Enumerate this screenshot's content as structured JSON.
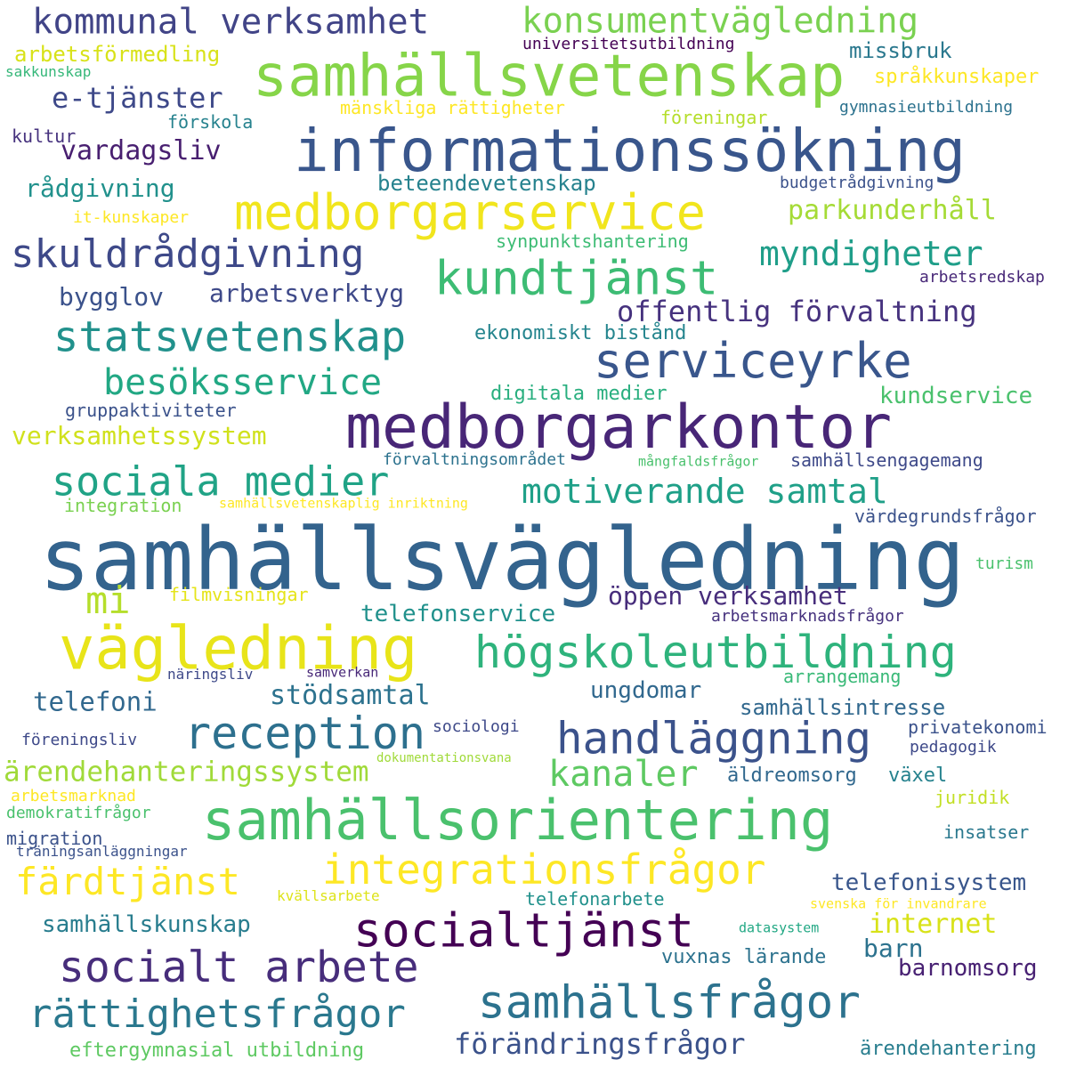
{
  "words": [
    {
      "text": "samhällsvägledning",
      "color": "#33638d"
    },
    {
      "text": "medborgarkontor",
      "color": "#482677"
    },
    {
      "text": "informationssökning",
      "color": "#39568c"
    },
    {
      "text": "samhällsvetenskap",
      "color": "#86d549"
    },
    {
      "text": "samhällsorientering",
      "color": "#4ac16d"
    },
    {
      "text": "vägledning",
      "color": "#e8e419"
    },
    {
      "text": "medborgarservice",
      "color": "#f1e51d"
    },
    {
      "text": "högskoleutbildning",
      "color": "#2eb37c"
    },
    {
      "text": "serviceyrke",
      "color": "#39568c"
    },
    {
      "text": "socialtjänst",
      "color": "#440154"
    },
    {
      "text": "samhällsfrågor",
      "color": "#2c728e"
    },
    {
      "text": "kundtjänst",
      "color": "#3dbc74"
    },
    {
      "text": "handläggning",
      "color": "#3b528b"
    },
    {
      "text": "reception",
      "color": "#2d708e"
    },
    {
      "text": "statsvetenskap",
      "color": "#21918c"
    },
    {
      "text": "socialt arbete",
      "color": "#472d7b"
    },
    {
      "text": "integrationsfrågor",
      "color": "#fde725"
    },
    {
      "text": "rättighetsfrågor",
      "color": "#2a788e"
    },
    {
      "text": "sociala medier",
      "color": "#20a386"
    },
    {
      "text": "skuldrådgivning",
      "color": "#3e4989"
    },
    {
      "text": "kommunal verksamhet",
      "color": "#414487"
    },
    {
      "text": "konsumentvägledning",
      "color": "#7ad151"
    },
    {
      "text": "besöksservice",
      "color": "#22a884"
    },
    {
      "text": "motiverande samtal",
      "color": "#1fa088"
    },
    {
      "text": "färdtjänst",
      "color": "#fde725"
    },
    {
      "text": "myndigheter",
      "color": "#1f9e89"
    },
    {
      "text": "offentlig förvaltning",
      "color": "#46327e"
    },
    {
      "text": "kanaler",
      "color": "#5ec962"
    },
    {
      "text": "förändringsfrågor",
      "color": "#3b528b"
    },
    {
      "text": "mi",
      "color": "#b5de2b"
    },
    {
      "text": "ärendehanteringssystem",
      "color": "#a0da39"
    },
    {
      "text": "parkunderhåll",
      "color": "#a5db36"
    },
    {
      "text": "internet",
      "color": "#d8e219"
    },
    {
      "text": "e-tjänster",
      "color": "#3e4989"
    },
    {
      "text": "vardagsliv",
      "color": "#481f70"
    },
    {
      "text": "stödsamtal",
      "color": "#2c728e"
    },
    {
      "text": "telefonservice",
      "color": "#21918c"
    },
    {
      "text": "öppen verksamhet",
      "color": "#472d7b"
    },
    {
      "text": "verksamhetssystem",
      "color": "#d0e11c"
    },
    {
      "text": "samhällskunskap",
      "color": "#287d8e"
    },
    {
      "text": "arbetsverktyg",
      "color": "#3e4989"
    },
    {
      "text": "rådgivning",
      "color": "#21918c"
    },
    {
      "text": "bygglov",
      "color": "#3b528b"
    },
    {
      "text": "telefoni",
      "color": "#31688e"
    },
    {
      "text": "ungdomar",
      "color": "#31688e"
    },
    {
      "text": "kundservice",
      "color": "#4ac16d"
    },
    {
      "text": "telefonisystem",
      "color": "#39568c"
    },
    {
      "text": "barnomsorg",
      "color": "#482173"
    },
    {
      "text": "barn",
      "color": "#2c728e"
    },
    {
      "text": "samhällsintresse",
      "color": "#31688e"
    },
    {
      "text": "missbruk",
      "color": "#2a788e"
    },
    {
      "text": "beteendevetenskap",
      "color": "#26828e"
    },
    {
      "text": "arbetsförmedling",
      "color": "#d8e219"
    },
    {
      "text": "språkkunskaper",
      "color": "#fde725"
    },
    {
      "text": "vuxnas lärande",
      "color": "#2c728e"
    },
    {
      "text": "ekonomiskt bistånd",
      "color": "#25858e"
    },
    {
      "text": "digitala medier",
      "color": "#29af7f"
    },
    {
      "text": "eftergymnasial utbildning",
      "color": "#5ec962"
    },
    {
      "text": "ärendehantering",
      "color": "#287d8e"
    },
    {
      "text": "äldreomsorg",
      "color": "#31688e"
    },
    {
      "text": "växel",
      "color": "#26828e"
    },
    {
      "text": "gruppaktiviteter",
      "color": "#3b528b"
    },
    {
      "text": "mänskliga rättigheter",
      "color": "#fde725"
    },
    {
      "text": "synpunktshantering",
      "color": "#3dbc74"
    },
    {
      "text": "gymnasieutbildning",
      "color": "#2c728e"
    },
    {
      "text": "budgetrådgivning",
      "color": "#3b528b"
    },
    {
      "text": "värdegrundsfrågor",
      "color": "#3b528b"
    },
    {
      "text": "arrangemang",
      "color": "#38b977"
    },
    {
      "text": "privatekonomi",
      "color": "#3b528b"
    },
    {
      "text": "samhällsengagemang",
      "color": "#3e4989"
    },
    {
      "text": "förskola",
      "color": "#26828e"
    },
    {
      "text": "föreningar",
      "color": "#b5de2b"
    },
    {
      "text": "kultur",
      "color": "#46327e"
    },
    {
      "text": "it-kunskaper",
      "color": "#fde725"
    },
    {
      "text": "filmvisningar",
      "color": "#e5e419"
    },
    {
      "text": "integration",
      "color": "#7ad151"
    },
    {
      "text": "arbetsmarknadsfrågor",
      "color": "#46327e"
    },
    {
      "text": "förvaltningsområdet",
      "color": "#2c728e"
    },
    {
      "text": "universitetsutbildning",
      "color": "#440154"
    },
    {
      "text": "sakkunskap",
      "color": "#35b779"
    },
    {
      "text": "arbetsredskap",
      "color": "#482878"
    },
    {
      "text": "turism",
      "color": "#4ac16d"
    },
    {
      "text": "föreningsliv",
      "color": "#3e4989"
    },
    {
      "text": "sociologi",
      "color": "#3e4989"
    },
    {
      "text": "pedagogik",
      "color": "#3e4989"
    },
    {
      "text": "juridik",
      "color": "#c2df23"
    },
    {
      "text": "insatser",
      "color": "#2a788e"
    },
    {
      "text": "arbetsmarknad",
      "color": "#fde725"
    },
    {
      "text": "demokratifrågor",
      "color": "#4ac16d"
    },
    {
      "text": "migration",
      "color": "#3b528b"
    },
    {
      "text": "träningsanläggningar",
      "color": "#3b528b"
    },
    {
      "text": "kvällsarbete",
      "color": "#dde318"
    },
    {
      "text": "telefonarbete",
      "color": "#21918c"
    },
    {
      "text": "svenska för invandrare",
      "color": "#fde725"
    },
    {
      "text": "datasystem",
      "color": "#22a884"
    },
    {
      "text": "mångfaldsfrågor",
      "color": "#4ac16d"
    },
    {
      "text": "samhällsvetenskaplig inriktning",
      "color": "#fde725"
    },
    {
      "text": "näringsliv",
      "color": "#3e4989"
    },
    {
      "text": "samverkan",
      "color": "#482878"
    },
    {
      "text": "dokumentationsvana",
      "color": "#a0da39"
    }
  ]
}
